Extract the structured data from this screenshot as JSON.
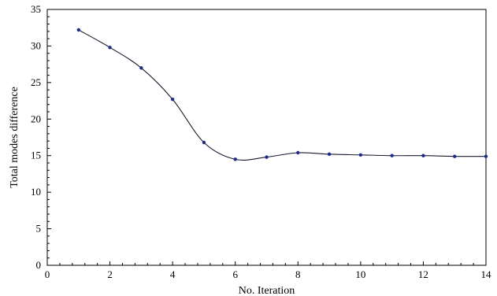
{
  "chart_data": {
    "type": "line",
    "title": "",
    "xlabel": "No. Iteration",
    "ylabel": "Total modes difference",
    "xlim": [
      0,
      14
    ],
    "ylim": [
      0,
      35
    ],
    "xticks": [
      0,
      2,
      4,
      6,
      8,
      10,
      12,
      14
    ],
    "yticks": [
      0,
      5,
      10,
      15,
      20,
      25,
      30,
      35
    ],
    "grid": false,
    "legend": "none",
    "smooth": true,
    "series": [
      {
        "x": [
          1,
          2,
          3,
          4,
          5,
          6,
          7,
          8,
          9,
          10,
          11,
          12,
          13,
          14
        ],
        "y": [
          32.2,
          29.8,
          27.0,
          22.7,
          16.8,
          14.5,
          14.8,
          15.4,
          15.2,
          15.1,
          15.0,
          15.0,
          14.9,
          14.9
        ],
        "line_color": "#1a1a2e",
        "marker_color": "#1f2a8a"
      }
    ]
  }
}
